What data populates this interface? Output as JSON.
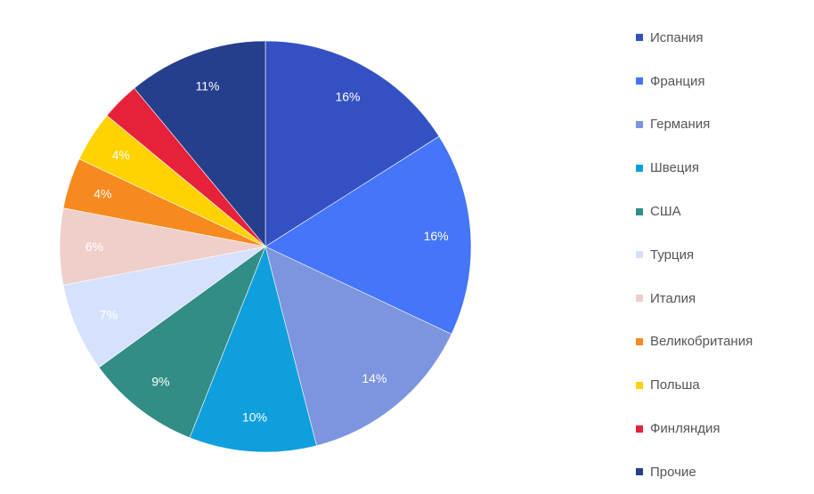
{
  "chart_data": {
    "type": "pie",
    "title": "",
    "start_angle_deg": 0,
    "direction": "clockwise",
    "legend_position": "right",
    "slices": [
      {
        "label": "Испания",
        "value": 16,
        "display": "16%",
        "color": "#3451C4",
        "label_color": "#ffffff"
      },
      {
        "label": "Франция",
        "value": 16,
        "display": "16%",
        "color": "#4576F9",
        "label_color": "#ffffff"
      },
      {
        "label": "Германия",
        "value": 14,
        "display": "14%",
        "color": "#7D94DE",
        "label_color": "#ffffff"
      },
      {
        "label": "Швеция",
        "value": 10,
        "display": "10%",
        "color": "#0E9FDC",
        "label_color": "#ffffff"
      },
      {
        "label": "США",
        "value": 9,
        "display": "9%",
        "color": "#318D85",
        "label_color": "#ffffff"
      },
      {
        "label": "Турция",
        "value": 7,
        "display": "7%",
        "color": "#D6E1FD",
        "label_color": "#444444"
      },
      {
        "label": "Италия",
        "value": 6,
        "display": "6%",
        "color": "#EFCFCA",
        "label_color": "#444444"
      },
      {
        "label": "Великобритания",
        "value": 4,
        "display": "4%",
        "color": "#F68A1E",
        "label_color": "#444444"
      },
      {
        "label": "Польша",
        "value": 4,
        "display": "4%",
        "color": "#FFD200",
        "label_color": "#444444"
      },
      {
        "label": "Финляндия",
        "value": 3,
        "display": "",
        "color": "#E8213A",
        "label_color": "#ffffff"
      },
      {
        "label": "Прочие",
        "value": 11,
        "display": "11%",
        "color": "#253F8C",
        "label_color": "#ffffff"
      }
    ]
  }
}
